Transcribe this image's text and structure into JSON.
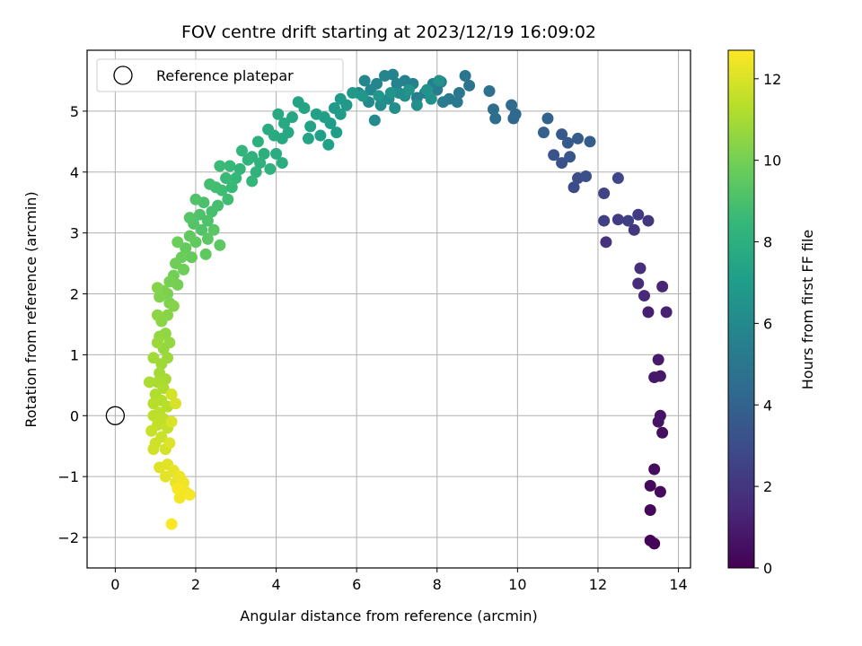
{
  "chart_data": {
    "type": "scatter",
    "title": "FOV centre drift starting at 2023/12/19 16:09:02",
    "xlabel": "Angular distance from reference (arcmin)",
    "ylabel": "Rotation from reference (arcmin)",
    "xlim": [
      -0.7,
      14.3
    ],
    "ylim": [
      -2.5,
      6.0
    ],
    "xticks": [
      0,
      2,
      4,
      6,
      8,
      10,
      12,
      14
    ],
    "yticks": [
      -2,
      -1,
      0,
      1,
      2,
      3,
      4,
      5
    ],
    "xtick_labels": [
      "0",
      "2",
      "4",
      "6",
      "8",
      "10",
      "12",
      "14"
    ],
    "ytick_labels": [
      "−2",
      "−1",
      "0",
      "1",
      "2",
      "3",
      "4",
      "5"
    ],
    "grid": true,
    "legend": {
      "entries": [
        "Reference platepar"
      ],
      "placement": "upper-left"
    },
    "reference_point": {
      "x": 0,
      "y": 0,
      "label": "Reference platepar"
    },
    "colorbar": {
      "label": "Hours from first FF file",
      "colormap": "viridis",
      "range": [
        0,
        12.7
      ],
      "ticks": [
        0,
        2,
        4,
        6,
        8,
        10,
        12
      ],
      "tick_labels": [
        "0",
        "2",
        "4",
        "6",
        "8",
        "10",
        "12"
      ]
    },
    "colors": {
      "viridis": [
        "#440154",
        "#482878",
        "#3e4989",
        "#31688e",
        "#26828e",
        "#1f9e89",
        "#35b779",
        "#6ece58",
        "#b5de2b",
        "#fde725"
      ],
      "grid": "#b0b0b0",
      "frame": "#000000"
    },
    "series": [
      {
        "points": [
          [
            13.4,
            -2.1,
            0.1
          ],
          [
            13.3,
            -2.05,
            0.15
          ],
          [
            13.3,
            -1.55,
            0.2
          ],
          [
            13.3,
            -1.15,
            0.3
          ],
          [
            13.55,
            -1.25,
            0.35
          ],
          [
            13.4,
            -0.88,
            0.4
          ],
          [
            13.6,
            -0.28,
            0.5
          ],
          [
            13.5,
            -0.1,
            0.6
          ],
          [
            13.55,
            0.0,
            0.7
          ],
          [
            13.4,
            0.63,
            0.8
          ],
          [
            13.55,
            0.65,
            0.85
          ],
          [
            13.5,
            0.92,
            0.9
          ],
          [
            13.25,
            1.7,
            1.1
          ],
          [
            13.7,
            1.7,
            1.2
          ],
          [
            13.6,
            2.12,
            1.3
          ],
          [
            13.15,
            1.97,
            1.5
          ],
          [
            13.0,
            2.17,
            1.6
          ],
          [
            13.05,
            2.42,
            1.7
          ],
          [
            12.2,
            2.85,
            1.9
          ],
          [
            12.9,
            3.05,
            2.0
          ],
          [
            13.25,
            3.2,
            2.1
          ],
          [
            13.0,
            3.3,
            2.2
          ],
          [
            12.5,
            3.22,
            2.3
          ],
          [
            12.75,
            3.2,
            2.4
          ],
          [
            12.15,
            3.2,
            2.5
          ],
          [
            12.15,
            3.65,
            2.6
          ],
          [
            12.5,
            3.9,
            2.8
          ],
          [
            11.4,
            3.75,
            2.9
          ],
          [
            11.5,
            3.9,
            3.0
          ],
          [
            11.7,
            3.93,
            3.1
          ],
          [
            11.1,
            4.15,
            3.2
          ],
          [
            10.9,
            4.28,
            3.3
          ],
          [
            11.3,
            4.25,
            3.4
          ],
          [
            11.1,
            4.62,
            3.5
          ],
          [
            11.25,
            4.48,
            3.6
          ],
          [
            11.5,
            4.55,
            3.7
          ],
          [
            11.8,
            4.5,
            3.8
          ],
          [
            10.65,
            4.65,
            3.9
          ],
          [
            10.75,
            4.88,
            4.0
          ],
          [
            9.9,
            4.88,
            4.2
          ],
          [
            9.95,
            4.95,
            4.3
          ],
          [
            9.85,
            5.1,
            4.4
          ],
          [
            9.45,
            4.88,
            4.5
          ],
          [
            9.4,
            5.03,
            4.6
          ],
          [
            9.3,
            5.33,
            4.7
          ],
          [
            8.8,
            5.42,
            4.9
          ],
          [
            8.7,
            5.58,
            5.0
          ],
          [
            8.55,
            5.3,
            5.1
          ],
          [
            8.5,
            5.15,
            5.15
          ],
          [
            8.3,
            5.2,
            5.2
          ],
          [
            8.15,
            5.15,
            5.25
          ],
          [
            8.0,
            5.35,
            5.3
          ],
          [
            8.1,
            5.48,
            5.35
          ],
          [
            7.9,
            5.45,
            5.4
          ],
          [
            7.7,
            5.3,
            5.45
          ],
          [
            7.5,
            5.22,
            5.5
          ],
          [
            7.4,
            5.45,
            5.55
          ],
          [
            7.2,
            5.5,
            5.6
          ],
          [
            7.0,
            5.45,
            5.65
          ],
          [
            6.9,
            5.6,
            5.7
          ],
          [
            6.7,
            5.58,
            5.75
          ],
          [
            6.5,
            5.45,
            5.8
          ],
          [
            6.35,
            5.35,
            5.85
          ],
          [
            6.2,
            5.5,
            5.9
          ],
          [
            6.05,
            5.3,
            5.95
          ],
          [
            6.3,
            5.15,
            6.0
          ],
          [
            6.45,
            4.85,
            6.05
          ],
          [
            6.8,
            5.2,
            6.1
          ],
          [
            7.05,
            5.3,
            6.15
          ],
          [
            6.6,
            5.1,
            6.2
          ],
          [
            7.2,
            5.25,
            6.25
          ],
          [
            6.95,
            5.05,
            6.3
          ],
          [
            7.5,
            5.1,
            6.35
          ],
          [
            7.85,
            5.2,
            6.4
          ],
          [
            8.05,
            5.5,
            6.45
          ],
          [
            7.75,
            5.35,
            6.5
          ],
          [
            7.3,
            5.35,
            6.55
          ],
          [
            6.85,
            5.3,
            6.6
          ],
          [
            6.55,
            5.25,
            6.65
          ],
          [
            6.15,
            5.25,
            6.7
          ],
          [
            5.9,
            5.3,
            6.75
          ],
          [
            5.75,
            5.1,
            6.8
          ],
          [
            5.6,
            5.2,
            6.85
          ],
          [
            5.45,
            5.05,
            6.9
          ],
          [
            5.6,
            4.95,
            6.95
          ],
          [
            5.35,
            4.8,
            7.0
          ],
          [
            5.5,
            4.65,
            7.05
          ],
          [
            5.2,
            4.9,
            7.1
          ],
          [
            5.1,
            4.6,
            7.15
          ],
          [
            5.3,
            4.45,
            7.2
          ],
          [
            5.0,
            4.95,
            7.25
          ],
          [
            4.85,
            4.75,
            7.3
          ],
          [
            4.7,
            5.05,
            7.35
          ],
          [
            4.55,
            5.15,
            7.4
          ],
          [
            4.8,
            4.55,
            7.45
          ],
          [
            4.4,
            4.9,
            7.5
          ],
          [
            4.3,
            4.65,
            7.55
          ],
          [
            4.15,
            4.55,
            7.6
          ],
          [
            4.05,
            4.95,
            7.65
          ],
          [
            4.2,
            4.8,
            7.7
          ],
          [
            3.95,
            4.6,
            7.75
          ],
          [
            3.8,
            4.7,
            7.8
          ],
          [
            4.0,
            4.3,
            7.85
          ],
          [
            4.15,
            4.15,
            7.9
          ],
          [
            3.7,
            4.3,
            7.95
          ],
          [
            3.55,
            4.5,
            8.0
          ],
          [
            3.6,
            4.15,
            8.05
          ],
          [
            3.4,
            4.25,
            8.1
          ],
          [
            3.85,
            4.05,
            8.15
          ],
          [
            3.5,
            4.0,
            8.2
          ],
          [
            3.3,
            4.2,
            8.25
          ],
          [
            3.15,
            4.35,
            8.3
          ],
          [
            3.1,
            4.05,
            8.35
          ],
          [
            3.4,
            3.85,
            8.4
          ],
          [
            3.0,
            3.9,
            8.45
          ],
          [
            2.85,
            4.1,
            8.5
          ],
          [
            2.9,
            3.75,
            8.55
          ],
          [
            2.75,
            3.9,
            8.6
          ],
          [
            2.6,
            4.1,
            8.65
          ],
          [
            2.65,
            3.7,
            8.7
          ],
          [
            2.8,
            3.55,
            8.75
          ],
          [
            2.5,
            3.75,
            8.8
          ],
          [
            2.35,
            3.8,
            8.85
          ],
          [
            2.55,
            3.45,
            8.9
          ],
          [
            2.4,
            3.35,
            8.95
          ],
          [
            2.2,
            3.5,
            9.0
          ],
          [
            2.3,
            3.2,
            9.05
          ],
          [
            2.1,
            3.3,
            9.1
          ],
          [
            2.0,
            3.55,
            9.15
          ],
          [
            2.15,
            3.05,
            9.2
          ],
          [
            1.95,
            3.15,
            9.25
          ],
          [
            1.85,
            3.25,
            9.3
          ],
          [
            2.45,
            3.05,
            9.35
          ],
          [
            2.3,
            2.9,
            9.4
          ],
          [
            2.6,
            2.8,
            9.45
          ],
          [
            2.25,
            2.65,
            9.5
          ],
          [
            2.0,
            2.85,
            9.55
          ],
          [
            1.85,
            2.95,
            9.6
          ],
          [
            1.75,
            2.75,
            9.65
          ],
          [
            1.9,
            2.6,
            9.7
          ],
          [
            1.65,
            2.6,
            9.75
          ],
          [
            1.55,
            2.85,
            9.8
          ],
          [
            1.7,
            2.4,
            9.85
          ],
          [
            1.5,
            2.5,
            9.9
          ],
          [
            1.45,
            2.3,
            9.95
          ],
          [
            1.55,
            2.15,
            10.0
          ],
          [
            1.35,
            2.2,
            10.05
          ],
          [
            1.3,
            2.0,
            10.1
          ],
          [
            1.2,
            2.05,
            10.15
          ],
          [
            1.35,
            1.85,
            10.2
          ],
          [
            1.1,
            1.95,
            10.25
          ],
          [
            1.05,
            2.1,
            10.3
          ],
          [
            1.45,
            1.8,
            10.35
          ],
          [
            1.3,
            1.65,
            10.4
          ],
          [
            1.15,
            1.55,
            10.45
          ],
          [
            1.05,
            1.65,
            10.5
          ],
          [
            1.25,
            1.35,
            10.55
          ],
          [
            1.1,
            1.3,
            10.6
          ],
          [
            1.35,
            1.2,
            10.65
          ],
          [
            1.2,
            1.1,
            10.7
          ],
          [
            1.05,
            1.2,
            10.75
          ],
          [
            1.3,
            0.95,
            10.8
          ],
          [
            1.15,
            0.85,
            10.85
          ],
          [
            0.95,
            0.95,
            10.9
          ],
          [
            1.1,
            0.7,
            10.95
          ],
          [
            1.25,
            0.6,
            11.0
          ],
          [
            1.05,
            0.55,
            11.05
          ],
          [
            0.85,
            0.55,
            11.1
          ],
          [
            1.2,
            0.45,
            11.15
          ],
          [
            1.0,
            0.35,
            11.2
          ],
          [
            1.15,
            0.25,
            11.25
          ],
          [
            0.95,
            0.2,
            11.3
          ],
          [
            1.3,
            0.15,
            11.35
          ],
          [
            1.1,
            0.05,
            11.4
          ],
          [
            0.95,
            0.0,
            11.45
          ],
          [
            1.2,
            -0.05,
            11.5
          ],
          [
            1.05,
            -0.15,
            11.55
          ],
          [
            1.3,
            -0.2,
            11.6
          ],
          [
            0.9,
            -0.25,
            11.65
          ],
          [
            1.15,
            -0.35,
            11.7
          ],
          [
            1.0,
            -0.45,
            11.75
          ],
          [
            0.95,
            -0.55,
            11.8
          ],
          [
            1.25,
            -0.55,
            11.85
          ],
          [
            1.4,
            0.35,
            11.9
          ],
          [
            1.5,
            0.2,
            11.95
          ],
          [
            1.4,
            -0.1,
            12.0
          ],
          [
            1.35,
            -0.45,
            12.05
          ],
          [
            1.1,
            -0.85,
            12.1
          ],
          [
            1.3,
            -0.8,
            12.15
          ],
          [
            1.25,
            -1.0,
            12.2
          ],
          [
            1.45,
            -0.9,
            12.25
          ],
          [
            1.5,
            -1.1,
            12.3
          ],
          [
            1.6,
            -1.0,
            12.35
          ],
          [
            1.7,
            -1.1,
            12.4
          ],
          [
            1.75,
            -1.25,
            12.45
          ],
          [
            1.6,
            -1.35,
            12.5
          ],
          [
            1.85,
            -1.3,
            12.55
          ],
          [
            1.55,
            -1.2,
            12.6
          ],
          [
            1.4,
            -1.78,
            12.65
          ]
        ]
      }
    ]
  }
}
